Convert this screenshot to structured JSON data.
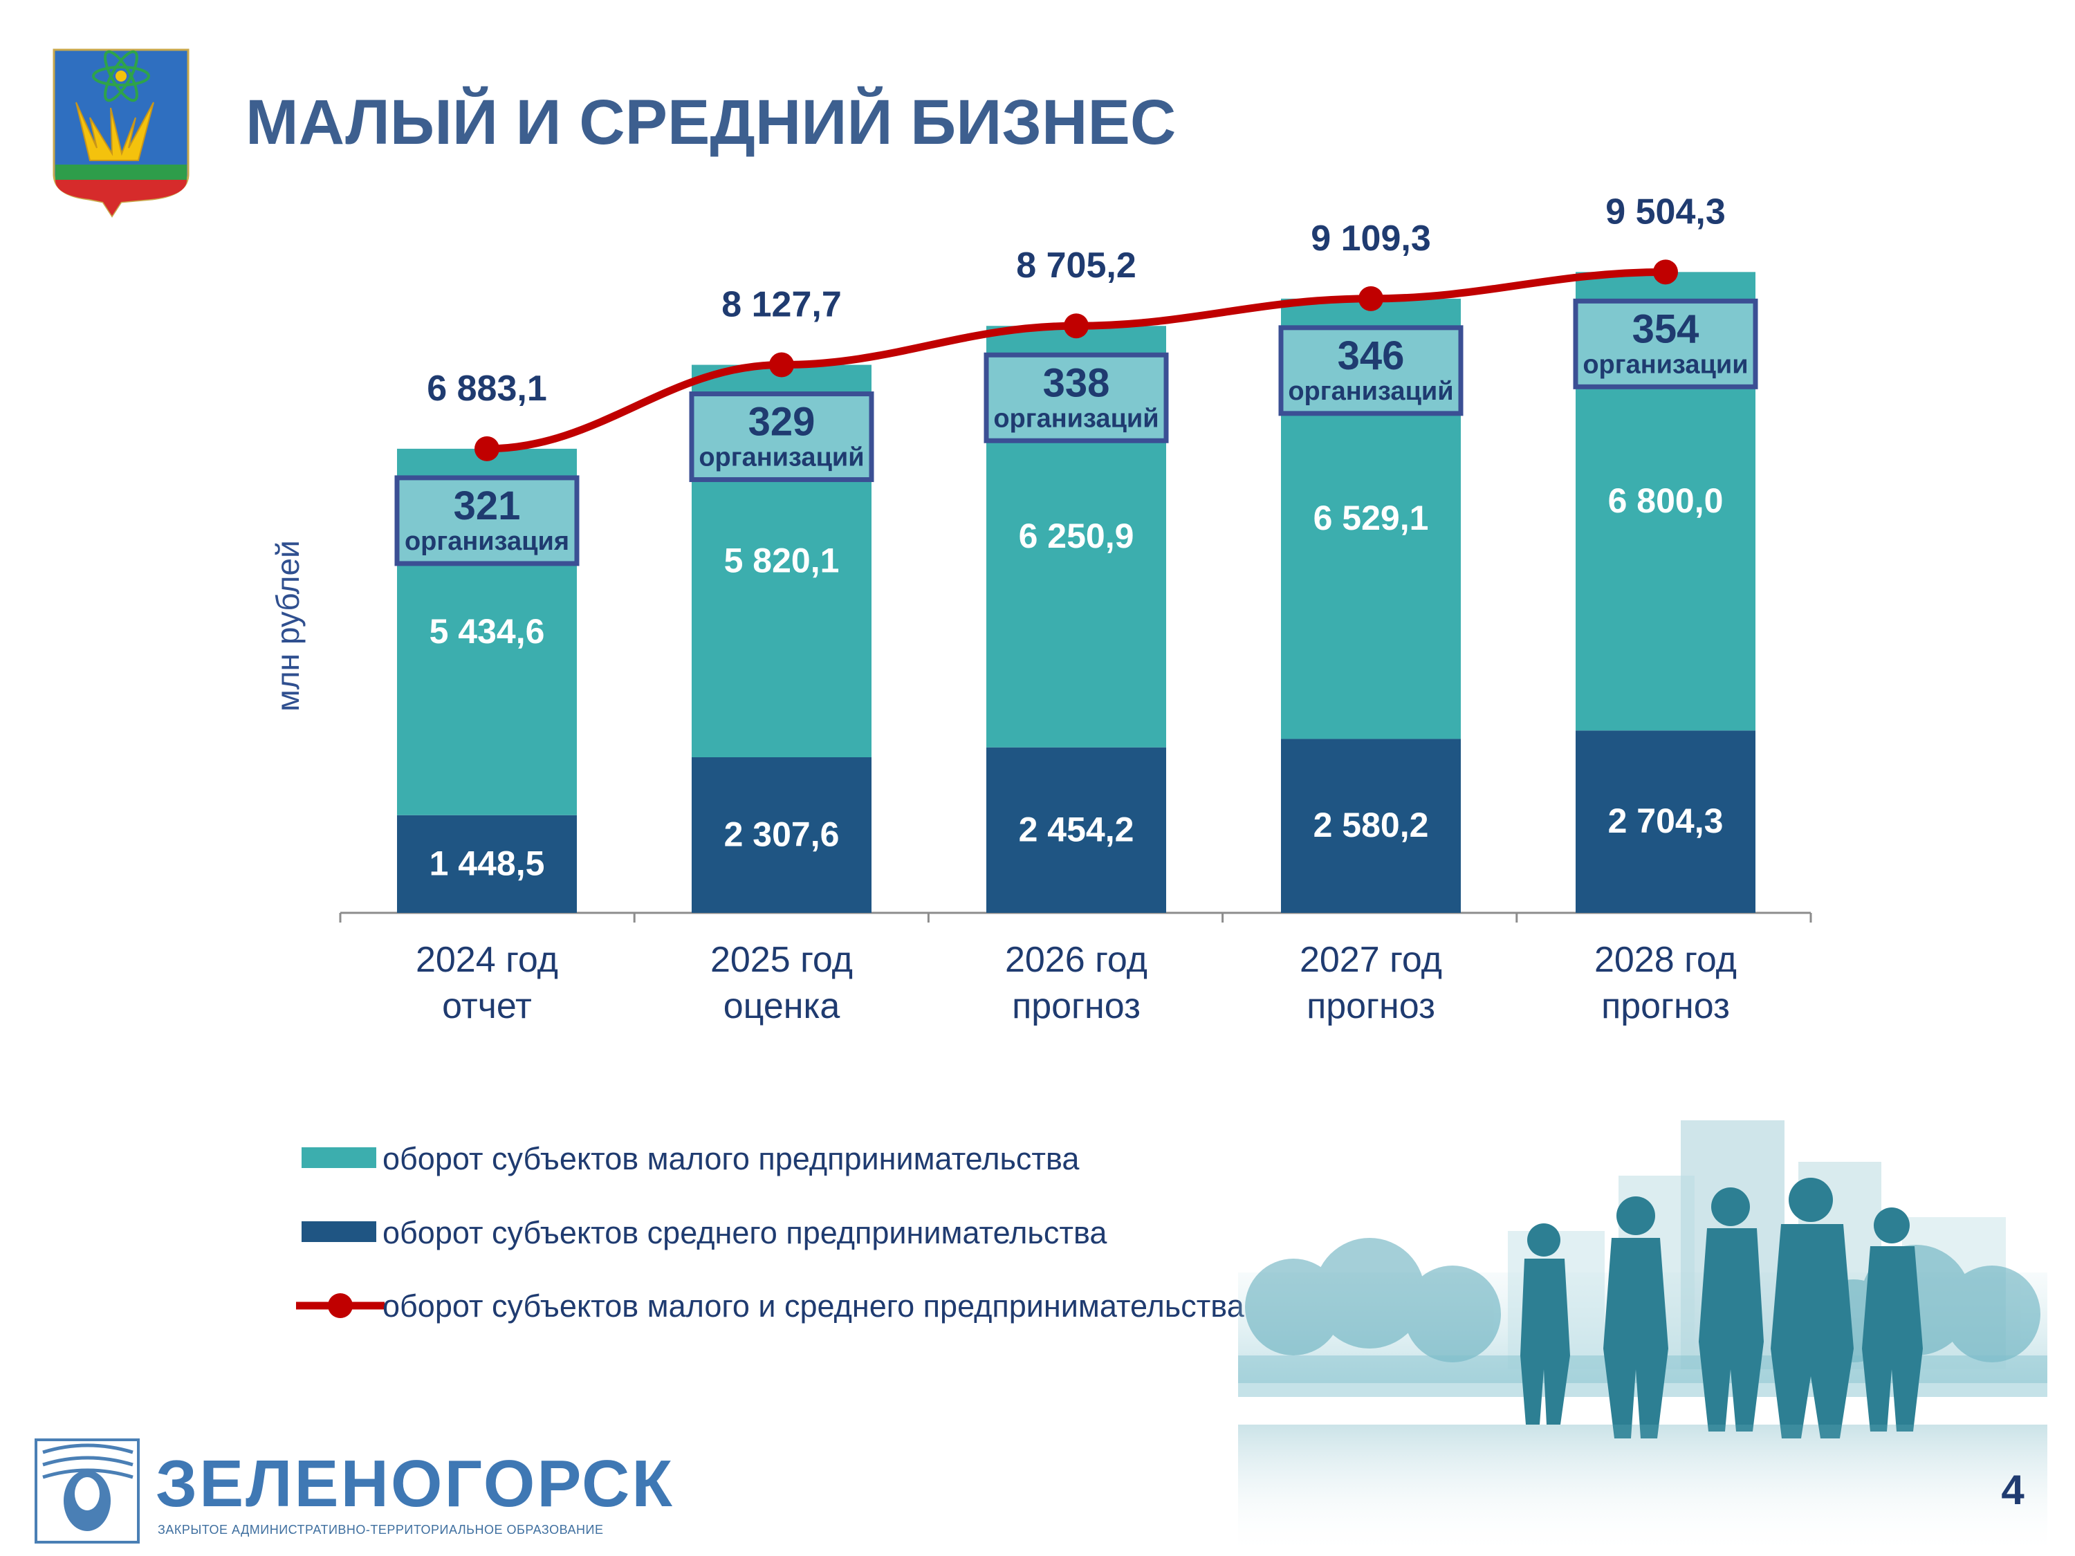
{
  "page": {
    "title": "МАЛЫЙ И СРЕДНИЙ БИЗНЕС",
    "page_number": "4",
    "logo_name": "ЗЕЛЕНОГОРСК",
    "logo_subtitle": "ЗАКРЫТОЕ АДМИНИСТРАТИВНО-ТЕРРИТОРИАЛЬНОЕ ОБРАЗОВАНИЕ"
  },
  "colors": {
    "small": "#3caeae",
    "medium": "#1f5583",
    "total_line": "#c00000",
    "org_box_fill": "#7fc8cf",
    "org_box_border": "#3b4f94",
    "text_dark": "#1f3b70"
  },
  "chart_data": {
    "type": "bar",
    "stacked": true,
    "ylabel": "млн рублей",
    "categories": [
      [
        "2024 год",
        "отчет"
      ],
      [
        "2025 год",
        "оценка"
      ],
      [
        "2026 год",
        "прогноз"
      ],
      [
        "2027 год",
        "прогноз"
      ],
      [
        "2028 год",
        "прогноз"
      ]
    ],
    "series": [
      {
        "name": "оборот субъектов среднего предпринимательства",
        "labels": [
          "1 448,5",
          "2 307,6",
          "2 454,2",
          "2 580,2",
          "2 704,3"
        ],
        "values": [
          1448.5,
          2307.6,
          2454.2,
          2580.2,
          2704.3
        ]
      },
      {
        "name": "оборот субъектов малого предпринимательства",
        "labels": [
          "5 434,6",
          "5 820,1",
          "6 250,9",
          "6 529,1",
          "6 800,0"
        ],
        "values": [
          5434.6,
          5820.1,
          6250.9,
          6529.1,
          6800.0
        ]
      },
      {
        "name": "оборот субъектов малого и среднего предпринимательства",
        "type": "line",
        "labels": [
          "6 883,1",
          "8 127,7",
          "8 705,2",
          "9 109,3",
          "9 504,3"
        ],
        "values": [
          6883.1,
          8127.7,
          8705.2,
          9109.3,
          9504.3
        ]
      }
    ],
    "organizations": [
      {
        "count": "321",
        "word": "организация"
      },
      {
        "count": "329",
        "word": "организаций"
      },
      {
        "count": "338",
        "word": "организаций"
      },
      {
        "count": "346",
        "word": "организаций"
      },
      {
        "count": "354",
        "word": "организации"
      }
    ],
    "legend": [
      {
        "name": "оборот субъектов малого предпринимательства",
        "marker": "bar",
        "color": "#3caeae"
      },
      {
        "name": "оборот субъектов среднего предпринимательства",
        "marker": "bar",
        "color": "#1f5583"
      },
      {
        "name": "оборот субъектов малого и среднего предпринимательства",
        "marker": "line",
        "color": "#c00000"
      }
    ],
    "legend_position": "bottom-left",
    "grid": false
  }
}
